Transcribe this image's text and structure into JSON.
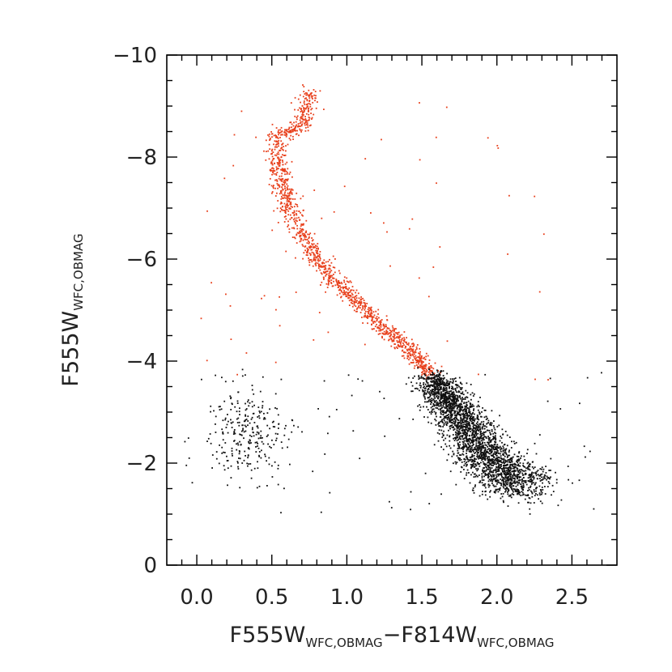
{
  "chart_data": {
    "type": "scatter",
    "title": "",
    "xlabel": {
      "main1": "F555W",
      "sub1": "WFC,OBMAG",
      "sep": "−",
      "main2": "F814W",
      "sub2": "WFC,OBMAG"
    },
    "ylabel": {
      "main": "F555W",
      "sub": "WFC,OBMAG"
    },
    "xlim": [
      -0.2,
      2.8
    ],
    "ylim": [
      0,
      -10
    ],
    "y_inverted": true,
    "grid": false,
    "x_ticks": [
      0.0,
      0.5,
      1.0,
      1.5,
      2.0,
      2.5
    ],
    "x_tick_labels": [
      "0.0",
      "0.5",
      "1.0",
      "1.5",
      "2.0",
      "2.5"
    ],
    "y_ticks": [
      0,
      -2,
      -4,
      -6,
      -8,
      -10
    ],
    "y_tick_labels": [
      "0",
      "−2",
      "−4",
      "−6",
      "−8",
      "−10"
    ],
    "series": [
      {
        "color": "#e8401c",
        "description_points": "main-sequence ridge (bright stars, mag < -3.5)",
        "ridge": [
          [
            0.75,
            -9.3
          ],
          [
            0.73,
            -9.0
          ],
          [
            0.72,
            -8.7
          ],
          [
            0.69,
            -8.6
          ],
          [
            0.62,
            -8.5
          ],
          [
            0.55,
            -8.45
          ],
          [
            0.53,
            -8.2
          ],
          [
            0.54,
            -7.8
          ],
          [
            0.57,
            -7.4
          ],
          [
            0.62,
            -7.0
          ],
          [
            0.68,
            -6.6
          ],
          [
            0.76,
            -6.2
          ],
          [
            0.86,
            -5.8
          ],
          [
            0.98,
            -5.4
          ],
          [
            1.12,
            -5.0
          ],
          [
            1.26,
            -4.6
          ],
          [
            1.42,
            -4.2
          ],
          [
            1.57,
            -3.7
          ]
        ],
        "scatter_width": 0.035,
        "n_points": 1400
      },
      {
        "color": "#111111",
        "description_points": "faint stars (mag > -3.5)",
        "ridge": [
          [
            1.57,
            -3.7
          ],
          [
            1.68,
            -3.2
          ],
          [
            1.78,
            -2.8
          ],
          [
            1.86,
            -2.4
          ],
          [
            1.95,
            -2.1
          ],
          [
            2.05,
            -1.8
          ],
          [
            2.2,
            -1.5
          ]
        ],
        "scatter_width": 0.09,
        "n_points": 2600,
        "blue_clump": {
          "x_center": 0.35,
          "y_center": -2.6,
          "x_spread": 0.22,
          "y_spread": 0.7,
          "n_points": 260
        }
      }
    ],
    "field_points": {
      "n_red": 70,
      "n_black": 80
    }
  }
}
